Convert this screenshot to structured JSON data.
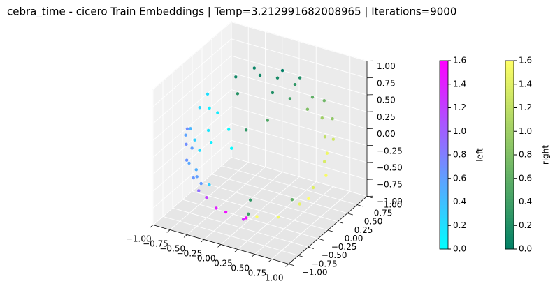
{
  "chart_data": {
    "type": "scatter3d",
    "title": "cebra_time - cicero Train Embeddings | Temp=3.212991682008965 | Iterations=9000",
    "xlim": [
      -1,
      1
    ],
    "ylim": [
      -1,
      1
    ],
    "zlim": [
      -1,
      1
    ],
    "xticks": [
      {
        "value": -1,
        "label": "−1.00"
      },
      {
        "value": -0.75,
        "label": "−0.75"
      },
      {
        "value": -0.5,
        "label": "−0.50"
      },
      {
        "value": -0.25,
        "label": "−0.25"
      },
      {
        "value": 0,
        "label": "0.00"
      },
      {
        "value": 0.25,
        "label": "0.25"
      },
      {
        "value": 0.5,
        "label": "0.50"
      },
      {
        "value": 0.75,
        "label": "0.75"
      },
      {
        "value": 1,
        "label": "1.00"
      }
    ],
    "yticks": [
      {
        "value": -1,
        "label": "−1.00"
      },
      {
        "value": -0.75,
        "label": "−0.75"
      },
      {
        "value": -0.5,
        "label": "−0.50"
      },
      {
        "value": -0.25,
        "label": "−0.25"
      },
      {
        "value": 0,
        "label": "0.00"
      },
      {
        "value": 0.25,
        "label": "0.25"
      },
      {
        "value": 0.5,
        "label": "0.50"
      },
      {
        "value": 0.75,
        "label": "0.75"
      },
      {
        "value": 1,
        "label": "1.00"
      }
    ],
    "zticks": [
      {
        "value": -1,
        "label": "−1.00"
      },
      {
        "value": -0.75,
        "label": "−0.75"
      },
      {
        "value": -0.5,
        "label": "−0.50"
      },
      {
        "value": -0.25,
        "label": "−0.25"
      },
      {
        "value": 0,
        "label": "0.00"
      },
      {
        "value": 0.25,
        "label": "0.25"
      },
      {
        "value": 0.5,
        "label": "0.50"
      },
      {
        "value": 0.75,
        "label": "0.75"
      },
      {
        "value": 1,
        "label": "1.00"
      }
    ],
    "series": [
      {
        "name": "left",
        "cmap": "cool",
        "clim": [
          0,
          1.6
        ],
        "cticks": [
          {
            "value": 0,
            "label": "0.0"
          },
          0.2,
          0.4,
          0.6,
          0.8,
          {
            "value": 1,
            "label": "1.0"
          },
          1.2,
          1.4,
          1.6
        ],
        "x": [
          -0.6,
          -0.7,
          -0.5,
          -0.55,
          -0.8,
          -0.4,
          -0.3,
          -0.2,
          -0.6,
          -0.7,
          -0.3,
          -0.1,
          0.1,
          -0.5,
          -0.45,
          -0.65,
          -0.2,
          -0.75,
          0.0,
          -0.4,
          -0.35,
          0.2,
          -0.85,
          -0.5,
          0.1,
          -0.6,
          -0.25,
          -0.9
        ],
        "y": [
          -0.7,
          -0.6,
          -0.8,
          -0.75,
          -0.5,
          -0.85,
          -0.8,
          -0.9,
          -0.5,
          -0.4,
          -0.6,
          -0.7,
          -0.6,
          -0.5,
          -0.85,
          -0.65,
          -0.95,
          -0.6,
          -0.8,
          -0.6,
          -0.9,
          -0.7,
          -0.4,
          -0.7,
          -0.9,
          -0.3,
          -0.65,
          -0.3
        ],
        "z": [
          0.1,
          -0.2,
          0.3,
          -0.3,
          0.0,
          0.2,
          0.5,
          0.4,
          0.6,
          -0.5,
          -0.75,
          -0.7,
          -0.8,
          -0.7,
          -0.1,
          0.35,
          -0.2,
          0.2,
          0.6,
          0.7,
          -0.25,
          -0.7,
          -0.3,
          -0.5,
          0.4,
          0.7,
          0.7,
          0.1
        ],
        "c": [
          0.6,
          0.55,
          0.3,
          0.65,
          0.7,
          0.2,
          0.15,
          0.1,
          0.25,
          0.6,
          1.4,
          1.5,
          1.3,
          1.2,
          0.5,
          0.45,
          0.3,
          0.58,
          0.05,
          0.1,
          0.62,
          1.55,
          0.66,
          0.9,
          0.02,
          0.2,
          0.12,
          0.7
        ]
      },
      {
        "name": "right",
        "cmap": "summer",
        "clim": [
          0,
          1.6
        ],
        "cticks": [
          {
            "value": 0,
            "label": "0.0"
          },
          0.2,
          0.4,
          0.6,
          0.8,
          {
            "value": 1,
            "label": "1.0"
          },
          1.2,
          1.4,
          1.6
        ],
        "x": [
          0.0,
          0.2,
          -0.2,
          0.3,
          -0.3,
          0.1,
          0.4,
          -0.1,
          0.5,
          0.3,
          0.6,
          0.7,
          0.8,
          0.9,
          0.85,
          0.7,
          0.8,
          0.6,
          0.5,
          0.7,
          0.9,
          0.3,
          0.95,
          0.6,
          0.4,
          0.2,
          0.75,
          0.0,
          -0.2,
          0.3
        ],
        "y": [
          0.0,
          0.1,
          0.2,
          -0.2,
          -0.1,
          0.4,
          0.2,
          -0.4,
          -0.1,
          0.5,
          0.3,
          0.0,
          0.2,
          0.1,
          0.4,
          0.5,
          0.3,
          0.2,
          -0.4,
          -0.2,
          -0.2,
          -0.6,
          0.0,
          0.6,
          -0.5,
          -0.7,
          0.55,
          -0.3,
          0.1,
          0.3
        ],
        "z": [
          1.0,
          0.97,
          0.95,
          0.93,
          0.94,
          0.9,
          0.88,
          0.9,
          0.85,
          0.8,
          0.7,
          0.7,
          0.5,
          0.3,
          0.1,
          -0.2,
          -0.4,
          -0.75,
          -0.75,
          -0.6,
          -0.3,
          -0.7,
          0.0,
          0.5,
          0.7,
          0.6,
          0.3,
          -0.9,
          -0.95,
          -0.9
        ],
        "c": [
          0.1,
          0.15,
          0.05,
          0.2,
          0.1,
          0.0,
          0.3,
          0.25,
          0.4,
          0.2,
          0.6,
          0.8,
          1.0,
          1.2,
          1.3,
          1.5,
          1.55,
          1.6,
          1.5,
          1.45,
          1.4,
          1.58,
          1.35,
          0.7,
          0.5,
          0.3,
          0.9,
          0.4,
          0.3,
          0.6
        ]
      }
    ]
  }
}
